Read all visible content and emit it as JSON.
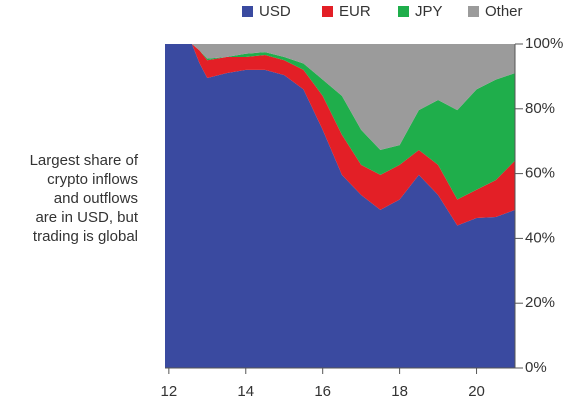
{
  "chart_data": {
    "type": "stacked_area",
    "annotation": [
      "Largest share of",
      "crypto inflows",
      "and outflows",
      "are in USD, but",
      "trading is global"
    ],
    "x": [
      11.9,
      12.6,
      12.8,
      13,
      13.5,
      14,
      14.5,
      15,
      15.5,
      16,
      16.5,
      17,
      17.5,
      18,
      18.5,
      19,
      19.5,
      20,
      20.5,
      21
    ],
    "series": [
      {
        "name": "USD",
        "color": "#3a4aa0",
        "values": [
          100,
          100,
          94,
          89.5,
          91,
          92,
          92,
          90.4,
          86,
          73.5,
          59.6,
          53.4,
          48.8,
          52,
          59.6,
          53.4,
          44,
          46.3,
          46.6,
          48.8
        ]
      },
      {
        "name": "EUR",
        "color": "#e31f26",
        "values": [
          0,
          0,
          4,
          5.5,
          5,
          4,
          4.6,
          4.6,
          6,
          10.5,
          12.4,
          9.3,
          10.8,
          10.7,
          7.7,
          9.3,
          8,
          8.7,
          11.4,
          15.2
        ]
      },
      {
        "name": "JPY",
        "color": "#1fae4b",
        "values": [
          0,
          0,
          0,
          0.5,
          0,
          1,
          0.9,
          1,
          2,
          5,
          12,
          10.8,
          7.7,
          6.1,
          12.3,
          20,
          27.6,
          31,
          31,
          27
        ]
      },
      {
        "name": "Other",
        "color": "#9b9b9b",
        "values": [
          0,
          0,
          2,
          4.5,
          4,
          3,
          2.5,
          4,
          6,
          11,
          16,
          26.5,
          32.7,
          31.2,
          20.4,
          17.3,
          20.4,
          14,
          11,
          9
        ]
      }
    ],
    "xlim": [
      11.9,
      21
    ],
    "xticks": [
      12,
      14,
      16,
      18,
      20
    ],
    "ylim": [
      0,
      100
    ],
    "yticks": [
      {
        "value": 0,
        "label": "0%"
      },
      {
        "value": 20,
        "label": "20%"
      },
      {
        "value": 40,
        "label": "40%"
      },
      {
        "value": 60,
        "label": "60%"
      },
      {
        "value": 80,
        "label": "80%"
      },
      {
        "value": 100,
        "label": "100%"
      }
    ],
    "legend": "top"
  }
}
